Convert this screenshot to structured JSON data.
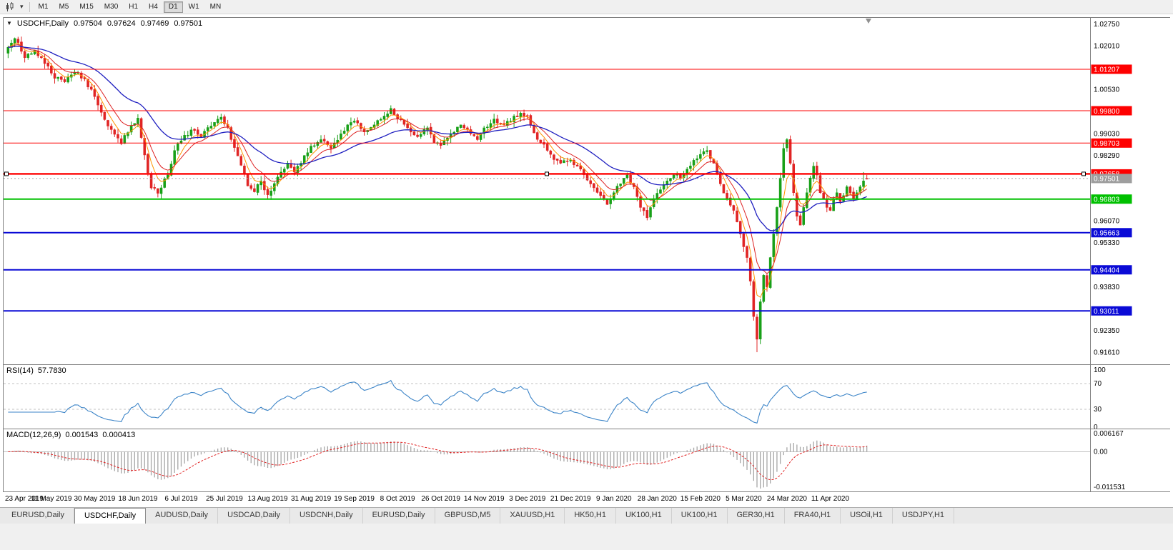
{
  "window": {
    "bg": "#f0f0f0"
  },
  "toolbar": {
    "timeframes": [
      {
        "label": "M1",
        "active": false
      },
      {
        "label": "M5",
        "active": false
      },
      {
        "label": "M15",
        "active": false
      },
      {
        "label": "M30",
        "active": false
      },
      {
        "label": "H1",
        "active": false
      },
      {
        "label": "H4",
        "active": false
      },
      {
        "label": "D1",
        "active": true
      },
      {
        "label": "W1",
        "active": false
      },
      {
        "label": "MN",
        "active": false
      }
    ]
  },
  "chart": {
    "title": {
      "symbol": "USDCHF,Daily",
      "open": "0.97504",
      "high": "0.97624",
      "low": "0.97469",
      "close": "0.97501"
    }
  },
  "chart_data": {
    "type": "candlestick",
    "symbol": "USDCHF",
    "timeframe": "Daily",
    "last_ohlc": {
      "open": 0.97504,
      "high": 0.97624,
      "low": 0.97469,
      "close": 0.97501
    },
    "n_candles": 259,
    "crash_low": 0.9161,
    "candle_colors": {
      "bull": "#18a018",
      "bear": "#e02424"
    },
    "ma_colors": {
      "fast": "#ff9500",
      "mid": "#dd2222",
      "slow": "#2020c0"
    },
    "y_axis": {
      "price_top": 1.0295,
      "price_bottom": 0.912,
      "ticks": [
        "1.02750",
        "1.02010",
        "1.01270",
        "1.00530",
        "0.99790",
        "0.99030",
        "0.98290",
        "0.97550",
        "0.96810",
        "0.96070",
        "0.95330",
        "0.94570",
        "0.93830",
        "0.93090",
        "0.92350",
        "0.91610"
      ]
    },
    "x_axis": {
      "candles_per_label": 13,
      "labels": [
        "23 Apr 2019",
        "11 May 2019",
        "30 May 2019",
        "18 Jun 2019",
        "6 Jul 2019",
        "25 Jul 2019",
        "13 Aug 2019",
        "31 Aug 2019",
        "19 Sep 2019",
        "8 Oct 2019",
        "26 Oct 2019",
        "14 Nov 2019",
        "3 Dec 2019",
        "21 Dec 2019",
        "9 Jan 2020",
        "28 Jan 2020",
        "15 Feb 2020",
        "5 Mar 2020",
        "24 Mar 2020",
        "11 Apr 2020"
      ]
    },
    "horizontal_lines": [
      {
        "value": 1.01207,
        "label": "1.01207",
        "color": "#fe0000",
        "width": 1,
        "selected": false
      },
      {
        "value": 0.998,
        "label": "0.99800",
        "color": "#fe0000",
        "width": 1,
        "selected": false
      },
      {
        "value": 0.98703,
        "label": "0.98703",
        "color": "#fe0000",
        "width": 1,
        "selected": false
      },
      {
        "value": 0.97658,
        "label": "0.97658",
        "color": "#fe0000",
        "width": 2.4,
        "selected": true
      },
      {
        "value": 0.96803,
        "label": "0.96803",
        "color": "#00c000",
        "width": 2,
        "selected": false
      },
      {
        "value": 0.95663,
        "label": "0.95663",
        "color": "#0a0ad6",
        "width": 2,
        "selected": false
      },
      {
        "value": 0.94404,
        "label": "0.94404",
        "color": "#0a0ad6",
        "width": 2,
        "selected": false
      },
      {
        "value": 0.93011,
        "label": "0.93011",
        "color": "#0a0ad6",
        "width": 2,
        "selected": false
      }
    ],
    "current_price": {
      "value": 0.97501,
      "label": "0.97501",
      "box_color": "#9e9e9e"
    },
    "price_anchors": [
      [
        0,
        1.0195
      ],
      [
        2,
        1.0225
      ],
      [
        5,
        1.016
      ],
      [
        8,
        1.0185
      ],
      [
        11,
        1.014
      ],
      [
        14,
        1.009
      ],
      [
        17,
        1.0078
      ],
      [
        20,
        1.011
      ],
      [
        23,
        1.0088
      ],
      [
        26,
        1.0028
      ],
      [
        29,
        0.995
      ],
      [
        32,
        0.99
      ],
      [
        34,
        0.9868
      ],
      [
        37,
        0.993
      ],
      [
        39,
        0.9955
      ],
      [
        41,
        0.983
      ],
      [
        43,
        0.9718
      ],
      [
        45,
        0.97
      ],
      [
        48,
        0.9762
      ],
      [
        50,
        0.9845
      ],
      [
        52,
        0.9878
      ],
      [
        55,
        0.9915
      ],
      [
        58,
        0.989
      ],
      [
        61,
        0.9928
      ],
      [
        64,
        0.9958
      ],
      [
        66,
        0.9925
      ],
      [
        68,
        0.9855
      ],
      [
        70,
        0.9795
      ],
      [
        72,
        0.9725
      ],
      [
        74,
        0.9705
      ],
      [
        76,
        0.9742
      ],
      [
        78,
        0.9695
      ],
      [
        80,
        0.9733
      ],
      [
        82,
        0.9772
      ],
      [
        84,
        0.98
      ],
      [
        86,
        0.9772
      ],
      [
        88,
        0.9802
      ],
      [
        91,
        0.986
      ],
      [
        94,
        0.9882
      ],
      [
        97,
        0.9852
      ],
      [
        100,
        0.9902
      ],
      [
        102,
        0.9932
      ],
      [
        104,
        0.9945
      ],
      [
        107,
        0.9908
      ],
      [
        110,
        0.9932
      ],
      [
        113,
        0.9962
      ],
      [
        115,
        0.9988
      ],
      [
        117,
        0.9952
      ],
      [
        120,
        0.9922
      ],
      [
        123,
        0.9892
      ],
      [
        126,
        0.9922
      ],
      [
        128,
        0.9872
      ],
      [
        130,
        0.9862
      ],
      [
        133,
        0.9902
      ],
      [
        136,
        0.9932
      ],
      [
        139,
        0.9902
      ],
      [
        141,
        0.9882
      ],
      [
        143,
        0.9922
      ],
      [
        146,
        0.9952
      ],
      [
        149,
        0.9932
      ],
      [
        152,
        0.9962
      ],
      [
        154,
        0.9972
      ],
      [
        156,
        0.9962
      ],
      [
        158,
        0.9905
      ],
      [
        160,
        0.9872
      ],
      [
        163,
        0.9832
      ],
      [
        166,
        0.9802
      ],
      [
        169,
        0.9812
      ],
      [
        172,
        0.9782
      ],
      [
        175,
        0.9732
      ],
      [
        178,
        0.9692
      ],
      [
        180,
        0.9662
      ],
      [
        182,
        0.9702
      ],
      [
        184,
        0.9732
      ],
      [
        186,
        0.9762
      ],
      [
        188,
        0.9722
      ],
      [
        190,
        0.9652
      ],
      [
        192,
        0.9617
      ],
      [
        194,
        0.9682
      ],
      [
        196,
        0.9712
      ],
      [
        198,
        0.9742
      ],
      [
        200,
        0.9762
      ],
      [
        202,
        0.9752
      ],
      [
        204,
        0.9782
      ],
      [
        206,
        0.9812
      ],
      [
        208,
        0.9832
      ],
      [
        210,
        0.9845
      ],
      [
        212,
        0.9802
      ],
      [
        214,
        0.9732
      ],
      [
        216,
        0.9682
      ],
      [
        218,
        0.9642
      ],
      [
        220,
        0.9562
      ],
      [
        222,
        0.9482
      ],
      [
        223,
        0.9402
      ],
      [
        224,
        0.9282
      ],
      [
        225,
        0.9205
      ],
      [
        226,
        0.9332
      ],
      [
        227,
        0.9422
      ],
      [
        228,
        0.9382
      ],
      [
        229,
        0.9482
      ],
      [
        230,
        0.9562
      ],
      [
        231,
        0.9652
      ],
      [
        232,
        0.9752
      ],
      [
        233,
        0.9852
      ],
      [
        234,
        0.9882
      ],
      [
        235,
        0.9802
      ],
      [
        236,
        0.9702
      ],
      [
        237,
        0.9622
      ],
      [
        238,
        0.9592
      ],
      [
        239,
        0.9652
      ],
      [
        240,
        0.9702
      ],
      [
        241,
        0.9752
      ],
      [
        242,
        0.9792
      ],
      [
        243,
        0.9762
      ],
      [
        244,
        0.9702
      ],
      [
        245,
        0.9682
      ],
      [
        246,
        0.9652
      ],
      [
        247,
        0.9642
      ],
      [
        248,
        0.9682
      ],
      [
        249,
        0.9702
      ],
      [
        250,
        0.9672
      ],
      [
        251,
        0.9692
      ],
      [
        252,
        0.9722
      ],
      [
        253,
        0.9702
      ],
      [
        254,
        0.9682
      ],
      [
        255,
        0.9702
      ],
      [
        256,
        0.9722
      ],
      [
        257,
        0.9742
      ],
      [
        258,
        0.97501
      ]
    ],
    "indicators": {
      "rsi": {
        "label": "RSI(14)",
        "value": "57.7830",
        "period": 14,
        "levels": [
          "100",
          "70",
          "30",
          "0"
        ],
        "level_lines": [
          70,
          30
        ],
        "line_color": "#3d85c8"
      },
      "macd": {
        "label": "MACD(12,26,9)",
        "value_main": "0.001543",
        "value_signal": "0.000413",
        "fast": 12,
        "slow": 26,
        "signal": 9,
        "scale_max": "0.006167",
        "scale_zero": "0.00",
        "scale_min": "-0.011531",
        "histogram_color": "#a6a6a6",
        "signal_color": "#e02020"
      }
    }
  },
  "tabs": {
    "items": [
      {
        "label": "EURUSD,Daily",
        "active": false
      },
      {
        "label": "USDCHF,Daily",
        "active": true
      },
      {
        "label": "AUDUSD,Daily",
        "active": false
      },
      {
        "label": "USDCAD,Daily",
        "active": false
      },
      {
        "label": "USDCNH,Daily",
        "active": false
      },
      {
        "label": "EURUSD,Daily",
        "active": false
      },
      {
        "label": "GBPUSD,M5",
        "active": false
      },
      {
        "label": "XAUUSD,H1",
        "active": false
      },
      {
        "label": "HK50,H1",
        "active": false
      },
      {
        "label": "UK100,H1",
        "active": false
      },
      {
        "label": "UK100,H1",
        "active": false
      },
      {
        "label": "GER30,H1",
        "active": false
      },
      {
        "label": "FRA40,H1",
        "active": false
      },
      {
        "label": "USOil,H1",
        "active": false
      },
      {
        "label": "USDJPY,H1",
        "active": false
      }
    ]
  }
}
